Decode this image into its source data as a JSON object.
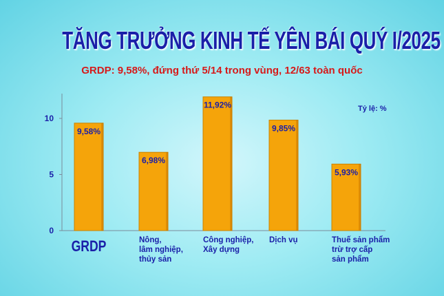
{
  "header": {
    "title": "TĂNG TRƯỞNG KINH TẾ YÊN BÁI QUÝ I/2025",
    "subtitle": "GRDP: 9,58%, đứng thứ 5/14 trong vùng, 12/63 toàn quốc"
  },
  "chart_data": {
    "type": "bar",
    "title": "TĂNG TRƯỞNG KINH TẾ YÊN BÁI QUÝ I/2025",
    "subtitle": "GRDP: 9,58%, đứng thứ 5/14 trong vùng, 12/63 toàn quốc",
    "unit_label": "Tỷ lệ: %",
    "categories": [
      [
        "GRDP"
      ],
      [
        "Nông,",
        "lâm nghiệp,",
        "thủy sản"
      ],
      [
        "Công nghiệp,",
        "Xây dựng"
      ],
      [
        "Dịch vụ"
      ],
      [
        "Thuế sản phẩm",
        "trừ trợ cấp",
        "sản phẩm"
      ]
    ],
    "values": [
      9.58,
      6.98,
      11.92,
      9.85,
      5.93
    ],
    "value_labels": [
      "9,58%",
      "6,98%",
      "11,92%",
      "9,85%",
      "5,93%"
    ],
    "y_ticks": [
      0,
      5,
      10
    ],
    "ylim": [
      0,
      10
    ],
    "grid": false,
    "legend": false,
    "colors": {
      "bar": "#f5a40a",
      "bar_edge": "#c98200",
      "axis_text": "#1a1fa8",
      "title": "#1a1fa8",
      "subtitle": "#d61a1a"
    }
  }
}
